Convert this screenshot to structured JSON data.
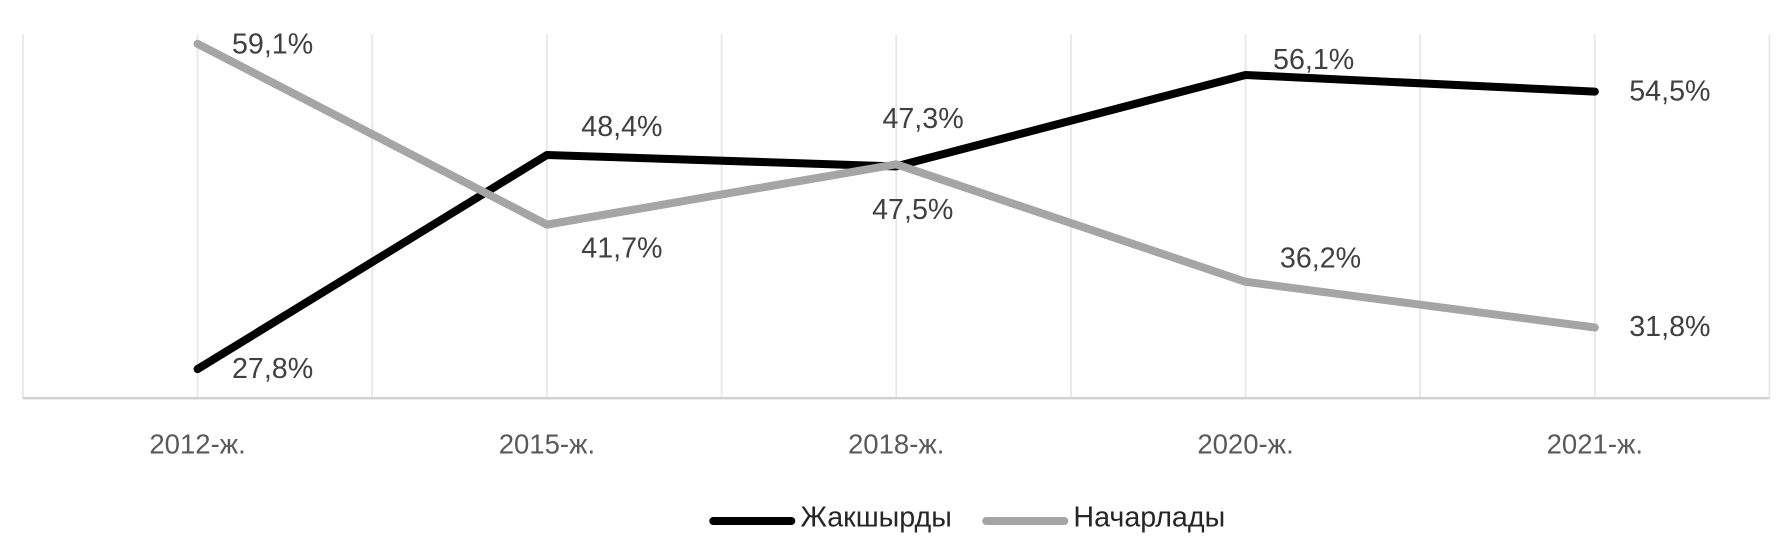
{
  "chart_data": {
    "type": "line",
    "categories": [
      "2012-ж.",
      "2015-ж.",
      "2018-ж.",
      "2020-ж.",
      "2021-ж."
    ],
    "series": [
      {
        "name": "Жакшырды",
        "color": "#000000",
        "values": [
          27.8,
          48.4,
          47.3,
          56.1,
          54.5
        ],
        "value_labels": [
          "27,8%",
          "48,4%",
          "47,3%",
          "56,1%",
          "54,5%"
        ]
      },
      {
        "name": "Начарлады",
        "color": "#a5a5a5",
        "values": [
          59.1,
          41.7,
          47.5,
          36.2,
          31.8
        ],
        "value_labels": [
          "59,1%",
          "41,7%",
          "47,5%",
          "36,2%",
          "31,8%"
        ]
      }
    ],
    "ylim": [
      25,
      60
    ],
    "grid": true,
    "legend": "bottom"
  }
}
